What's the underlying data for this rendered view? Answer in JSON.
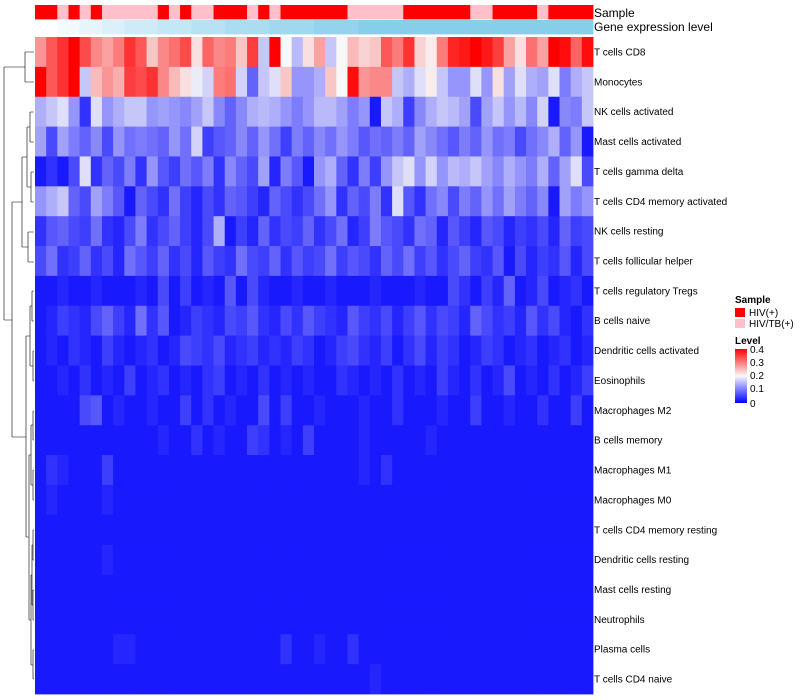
{
  "chart_data": {
    "type": "heatmap",
    "title": "",
    "annotation_tracks": [
      {
        "name": "Sample"
      },
      {
        "name": "Gene expression level"
      }
    ],
    "sample_groups": [
      "HIV(+)",
      "HIV(+)",
      "HIV/TB(+)",
      "HIV(+)",
      "HIV/TB(+)",
      "HIV(+)",
      "HIV/TB(+)",
      "HIV/TB(+)",
      "HIV/TB(+)",
      "HIV/TB(+)",
      "HIV/TB(+)",
      "HIV(+)",
      "HIV/TB(+)",
      "HIV(+)",
      "HIV/TB(+)",
      "HIV/TB(+)",
      "HIV(+)",
      "HIV(+)",
      "HIV(+)",
      "HIV/TB(+)",
      "HIV(+)",
      "HIV/TB(+)",
      "HIV(+)",
      "HIV(+)",
      "HIV(+)",
      "HIV(+)",
      "HIV(+)",
      "HIV(+)",
      "HIV/TB(+)",
      "HIV/TB(+)",
      "HIV/TB(+)",
      "HIV/TB(+)",
      "HIV/TB(+)",
      "HIV(+)",
      "HIV(+)",
      "HIV(+)",
      "HIV(+)",
      "HIV(+)",
      "HIV(+)",
      "HIV/TB(+)",
      "HIV/TB(+)",
      "HIV(+)",
      "HIV(+)",
      "HIV(+)",
      "HIV(+)",
      "HIV/TB(+)",
      "HIV(+)",
      "HIV(+)",
      "HIV(+)",
      "HIV(+)"
    ],
    "expression_level_cols": [
      0,
      0,
      0.1,
      0.1,
      0.2,
      0.2,
      0.3,
      0.3,
      0.4,
      0.4,
      0.4,
      0.5,
      0.5,
      0.5,
      0.6,
      0.6,
      0.6,
      0.7,
      0.7,
      0.7,
      0.7,
      0.8,
      0.8,
      0.8,
      0.8,
      0.9,
      0.9,
      0.9,
      0.9,
      1,
      1,
      1,
      1,
      1,
      1,
      1,
      1,
      1,
      1,
      1,
      1,
      1,
      1,
      1,
      1,
      1,
      1,
      1,
      1,
      1
    ],
    "rows": [
      "T cells CD8",
      "Monocytes",
      "NK cells activated",
      "Mast cells activated",
      "T cells gamma delta",
      "T cells CD4 memory activated",
      "NK cells resting",
      "T cells follicular helper",
      "T cells regulatory  Tregs",
      "B cells naive",
      "Dendritic cells activated",
      "Eosinophils",
      "Macrophages M2",
      "B cells memory",
      "Macrophages M1",
      "Macrophages M0",
      "T cells CD4 memory resting",
      "Dendritic cells resting",
      "Mast cells resting",
      "Neutrophils",
      "Plasma cells",
      "T cells CD4 naive"
    ],
    "values": [
      [
        0.28,
        0.33,
        0.36,
        0.4,
        0.34,
        0.29,
        0.27,
        0.3,
        0.36,
        0.33,
        0.24,
        0.29,
        0.31,
        0.34,
        0.22,
        0.32,
        0.29,
        0.3,
        0.24,
        0.35,
        0.16,
        0.4,
        0.2,
        0.15,
        0.22,
        0.27,
        0.16,
        0.2,
        0.25,
        0.23,
        0.24,
        0.33,
        0.3,
        0.36,
        0.23,
        0.21,
        0.3,
        0.37,
        0.38,
        0.4,
        0.38,
        0.35,
        0.27,
        0.22,
        0.31,
        0.27,
        0.4,
        0.39,
        0.32,
        0.39
      ],
      [
        0.4,
        0.33,
        0.36,
        0.4,
        0.16,
        0.25,
        0.28,
        0.26,
        0.35,
        0.34,
        0.36,
        0.29,
        0.25,
        0.22,
        0.19,
        0.17,
        0.3,
        0.31,
        0.17,
        0.08,
        0.16,
        0.18,
        0.24,
        0.12,
        0.12,
        0.14,
        0.24,
        0.2,
        0.39,
        0.28,
        0.29,
        0.29,
        0.16,
        0.14,
        0.18,
        0.21,
        0.16,
        0.12,
        0.12,
        0.18,
        0.12,
        0.22,
        0.13,
        0.18,
        0.14,
        0.13,
        0.18,
        0.1,
        0.14,
        0.16
      ],
      [
        0.14,
        0.16,
        0.18,
        0.12,
        0.04,
        0.18,
        0.12,
        0.14,
        0.16,
        0.16,
        0.12,
        0.13,
        0.12,
        0.11,
        0.13,
        0.16,
        0.11,
        0.08,
        0.11,
        0.14,
        0.15,
        0.14,
        0.12,
        0.1,
        0.12,
        0.15,
        0.15,
        0.13,
        0.1,
        0.12,
        0.02,
        0.16,
        0.14,
        0.05,
        0.11,
        0.14,
        0.16,
        0.15,
        0.13,
        0.06,
        0.13,
        0.16,
        0.12,
        0.15,
        0.11,
        0.17,
        0.02,
        0.11,
        0.1,
        0.16
      ],
      [
        0.13,
        0.06,
        0.13,
        0.1,
        0.08,
        0.11,
        0.06,
        0.12,
        0.09,
        0.1,
        0.09,
        0.08,
        0.12,
        0.09,
        0.17,
        0.05,
        0.07,
        0.08,
        0.11,
        0.08,
        0.12,
        0.09,
        0.05,
        0.1,
        0.08,
        0.11,
        0.09,
        0.12,
        0.1,
        0.07,
        0.09,
        0.08,
        0.1,
        0.08,
        0.13,
        0.11,
        0.09,
        0.07,
        0.1,
        0.08,
        0.12,
        0.09,
        0.1,
        0.06,
        0.09,
        0.11,
        0.14,
        0.08,
        0.12,
        0.02
      ],
      [
        0.02,
        0.04,
        0.02,
        0.06,
        0.18,
        0.04,
        0.08,
        0.06,
        0.1,
        0.04,
        0.12,
        0.07,
        0.05,
        0.09,
        0.07,
        0.1,
        0.04,
        0.11,
        0.08,
        0.06,
        0.13,
        0.03,
        0.1,
        0.07,
        0.02,
        0.12,
        0.14,
        0.08,
        0.04,
        0.1,
        0.05,
        0.12,
        0.16,
        0.18,
        0.12,
        0.17,
        0.12,
        0.15,
        0.14,
        0.16,
        0.13,
        0.11,
        0.14,
        0.12,
        0.1,
        0.14,
        0.08,
        0.13,
        0.18,
        0.06
      ],
      [
        0.12,
        0.14,
        0.16,
        0.08,
        0.06,
        0.13,
        0.1,
        0.07,
        0.02,
        0.08,
        0.06,
        0.04,
        0.09,
        0.05,
        0.03,
        0.06,
        0.04,
        0.08,
        0.07,
        0.05,
        0.03,
        0.08,
        0.06,
        0.04,
        0.06,
        0.09,
        0.12,
        0.04,
        0.08,
        0.06,
        0.1,
        0.04,
        0.18,
        0.07,
        0.04,
        0.09,
        0.11,
        0.06,
        0.1,
        0.08,
        0.12,
        0.09,
        0.13,
        0.1,
        0.08,
        0.11,
        0.02,
        0.13,
        0.1,
        0.12
      ],
      [
        0.04,
        0.07,
        0.08,
        0.06,
        0.05,
        0.09,
        0.04,
        0.03,
        0.06,
        0.1,
        0.04,
        0.06,
        0.08,
        0.05,
        0.03,
        0.06,
        0.14,
        0.02,
        0.05,
        0.03,
        0.08,
        0.04,
        0.06,
        0.05,
        0.08,
        0.04,
        0.06,
        0.09,
        0.03,
        0.05,
        0.1,
        0.07,
        0.06,
        0.04,
        0.09,
        0.08,
        0.03,
        0.07,
        0.05,
        0.03,
        0.07,
        0.06,
        0.03,
        0.05,
        0.04,
        0.06,
        0.03,
        0.08,
        0.05,
        0.06
      ],
      [
        0.06,
        0.09,
        0.04,
        0.05,
        0.08,
        0.04,
        0.06,
        0.03,
        0.09,
        0.07,
        0.05,
        0.08,
        0.04,
        0.06,
        0.03,
        0.07,
        0.05,
        0.04,
        0.09,
        0.06,
        0.05,
        0.08,
        0.04,
        0.07,
        0.05,
        0.06,
        0.09,
        0.05,
        0.07,
        0.06,
        0.04,
        0.08,
        0.06,
        0.09,
        0.05,
        0.07,
        0.04,
        0.06,
        0.08,
        0.05,
        0.04,
        0.07,
        0.02,
        0.06,
        0.03,
        0.05,
        0.04,
        0.07,
        0.03,
        0.06
      ],
      [
        0.02,
        0.02,
        0.03,
        0.02,
        0.02,
        0.03,
        0.02,
        0.02,
        0.02,
        0.03,
        0.02,
        0.06,
        0.02,
        0.05,
        0.02,
        0.03,
        0.02,
        0.07,
        0.02,
        0.06,
        0.03,
        0.02,
        0.02,
        0.03,
        0.02,
        0.02,
        0.03,
        0.02,
        0.02,
        0.02,
        0.03,
        0.02,
        0.02,
        0.02,
        0.03,
        0.02,
        0.02,
        0.06,
        0.04,
        0.02,
        0.05,
        0.03,
        0.08,
        0.02,
        0.03,
        0.06,
        0.02,
        0.03,
        0.04,
        0.02
      ],
      [
        0.02,
        0.03,
        0.05,
        0.04,
        0.03,
        0.06,
        0.08,
        0.05,
        0.03,
        0.09,
        0.04,
        0.07,
        0.02,
        0.03,
        0.05,
        0.04,
        0.03,
        0.06,
        0.05,
        0.07,
        0.04,
        0.03,
        0.06,
        0.04,
        0.07,
        0.05,
        0.04,
        0.03,
        0.07,
        0.05,
        0.04,
        0.06,
        0.03,
        0.05,
        0.07,
        0.04,
        0.06,
        0.05,
        0.03,
        0.08,
        0.06,
        0.04,
        0.05,
        0.03,
        0.07,
        0.04,
        0.06,
        0.03,
        0.02,
        0.04
      ],
      [
        0.02,
        0.03,
        0.02,
        0.04,
        0.03,
        0.02,
        0.05,
        0.03,
        0.02,
        0.03,
        0.04,
        0.02,
        0.03,
        0.06,
        0.05,
        0.04,
        0.06,
        0.03,
        0.04,
        0.05,
        0.03,
        0.04,
        0.03,
        0.05,
        0.04,
        0.02,
        0.03,
        0.05,
        0.06,
        0.04,
        0.03,
        0.05,
        0.02,
        0.04,
        0.06,
        0.03,
        0.05,
        0.04,
        0.02,
        0.03,
        0.05,
        0.04,
        0.02,
        0.03,
        0.04,
        0.02,
        0.03,
        0.04,
        0.02,
        0.03
      ],
      [
        0.02,
        0.02,
        0.03,
        0.02,
        0.04,
        0.02,
        0.03,
        0.02,
        0.05,
        0.02,
        0.03,
        0.04,
        0.02,
        0.03,
        0.02,
        0.04,
        0.05,
        0.02,
        0.03,
        0.02,
        0.04,
        0.02,
        0.03,
        0.02,
        0.03,
        0.02,
        0.02,
        0.04,
        0.03,
        0.02,
        0.03,
        0.02,
        0.04,
        0.02,
        0.03,
        0.02,
        0.05,
        0.03,
        0.02,
        0.04,
        0.02,
        0.03,
        0.06,
        0.02,
        0.03,
        0.02,
        0.04,
        0.02,
        0.03,
        0.05
      ],
      [
        0.02,
        0.02,
        0.02,
        0.02,
        0.06,
        0.07,
        0.02,
        0.03,
        0.02,
        0.02,
        0.03,
        0.02,
        0.02,
        0.05,
        0.02,
        0.04,
        0.02,
        0.03,
        0.02,
        0.02,
        0.06,
        0.02,
        0.05,
        0.02,
        0.02,
        0.03,
        0.02,
        0.02,
        0.02,
        0.03,
        0.02,
        0.02,
        0.04,
        0.02,
        0.02,
        0.02,
        0.03,
        0.02,
        0.02,
        0.05,
        0.02,
        0.02,
        0.03,
        0.02,
        0.02,
        0.04,
        0.02,
        0.02,
        0.05,
        0.02
      ],
      [
        0.02,
        0.02,
        0.02,
        0.02,
        0.02,
        0.02,
        0.02,
        0.02,
        0.02,
        0.02,
        0.02,
        0.03,
        0.02,
        0.02,
        0.04,
        0.02,
        0.03,
        0.02,
        0.02,
        0.05,
        0.04,
        0.02,
        0.03,
        0.02,
        0.05,
        0.02,
        0.02,
        0.02,
        0.02,
        0.03,
        0.02,
        0.02,
        0.02,
        0.02,
        0.02,
        0.03,
        0.02,
        0.02,
        0.02,
        0.02,
        0.02,
        0.02,
        0.02,
        0.02,
        0.02,
        0.02,
        0.02,
        0.02,
        0.02,
        0.02
      ],
      [
        0.02,
        0.04,
        0.03,
        0.02,
        0.02,
        0.02,
        0.05,
        0.02,
        0.02,
        0.02,
        0.02,
        0.02,
        0.02,
        0.02,
        0.02,
        0.02,
        0.02,
        0.02,
        0.02,
        0.02,
        0.02,
        0.02,
        0.02,
        0.02,
        0.02,
        0.02,
        0.02,
        0.02,
        0.02,
        0.03,
        0.02,
        0.04,
        0.02,
        0.02,
        0.02,
        0.02,
        0.02,
        0.02,
        0.02,
        0.02,
        0.02,
        0.02,
        0.02,
        0.02,
        0.02,
        0.02,
        0.02,
        0.02,
        0.02,
        0.02
      ],
      [
        0.02,
        0.03,
        0.02,
        0.02,
        0.02,
        0.02,
        0.03,
        0.02,
        0.02,
        0.02,
        0.02,
        0.02,
        0.02,
        0.02,
        0.02,
        0.02,
        0.02,
        0.02,
        0.02,
        0.02,
        0.02,
        0.02,
        0.02,
        0.02,
        0.02,
        0.02,
        0.02,
        0.02,
        0.02,
        0.02,
        0.02,
        0.02,
        0.02,
        0.02,
        0.02,
        0.02,
        0.02,
        0.02,
        0.02,
        0.02,
        0.02,
        0.02,
        0.02,
        0.02,
        0.02,
        0.02,
        0.02,
        0.02,
        0.02,
        0.02
      ],
      [
        0.02,
        0.02,
        0.02,
        0.02,
        0.02,
        0.02,
        0.02,
        0.02,
        0.02,
        0.02,
        0.02,
        0.02,
        0.02,
        0.02,
        0.02,
        0.02,
        0.02,
        0.02,
        0.02,
        0.02,
        0.02,
        0.02,
        0.02,
        0.02,
        0.02,
        0.02,
        0.02,
        0.02,
        0.02,
        0.02,
        0.02,
        0.02,
        0.02,
        0.02,
        0.02,
        0.02,
        0.02,
        0.02,
        0.02,
        0.02,
        0.02,
        0.02,
        0.02,
        0.02,
        0.02,
        0.02,
        0.02,
        0.02,
        0.02,
        0.02
      ],
      [
        0.02,
        0.02,
        0.02,
        0.02,
        0.02,
        0.02,
        0.03,
        0.02,
        0.02,
        0.02,
        0.02,
        0.02,
        0.02,
        0.02,
        0.02,
        0.02,
        0.02,
        0.02,
        0.02,
        0.02,
        0.02,
        0.02,
        0.02,
        0.02,
        0.02,
        0.02,
        0.02,
        0.02,
        0.02,
        0.02,
        0.02,
        0.02,
        0.02,
        0.02,
        0.02,
        0.02,
        0.02,
        0.02,
        0.02,
        0.02,
        0.02,
        0.02,
        0.02,
        0.02,
        0.02,
        0.02,
        0.02,
        0.02,
        0.02,
        0.02
      ],
      [
        0.02,
        0.02,
        0.02,
        0.02,
        0.02,
        0.02,
        0.02,
        0.02,
        0.02,
        0.02,
        0.02,
        0.02,
        0.02,
        0.02,
        0.02,
        0.02,
        0.02,
        0.02,
        0.02,
        0.02,
        0.02,
        0.02,
        0.02,
        0.02,
        0.02,
        0.02,
        0.02,
        0.02,
        0.02,
        0.02,
        0.02,
        0.02,
        0.02,
        0.02,
        0.02,
        0.02,
        0.02,
        0.02,
        0.02,
        0.02,
        0.02,
        0.02,
        0.02,
        0.02,
        0.02,
        0.02,
        0.02,
        0.02,
        0.02,
        0.02
      ],
      [
        0.02,
        0.02,
        0.02,
        0.02,
        0.02,
        0.02,
        0.02,
        0.02,
        0.02,
        0.02,
        0.02,
        0.02,
        0.02,
        0.02,
        0.02,
        0.02,
        0.02,
        0.02,
        0.02,
        0.02,
        0.02,
        0.02,
        0.02,
        0.02,
        0.02,
        0.02,
        0.02,
        0.02,
        0.02,
        0.02,
        0.02,
        0.02,
        0.02,
        0.02,
        0.02,
        0.02,
        0.02,
        0.02,
        0.02,
        0.02,
        0.02,
        0.02,
        0.02,
        0.02,
        0.02,
        0.02,
        0.02,
        0.02,
        0.02,
        0.02
      ],
      [
        0.02,
        0.02,
        0.02,
        0.02,
        0.02,
        0.02,
        0.02,
        0.03,
        0.03,
        0.02,
        0.02,
        0.02,
        0.02,
        0.02,
        0.02,
        0.02,
        0.02,
        0.02,
        0.02,
        0.02,
        0.02,
        0.02,
        0.04,
        0.02,
        0.02,
        0.03,
        0.02,
        0.02,
        0.04,
        0.02,
        0.02,
        0.02,
        0.02,
        0.02,
        0.02,
        0.02,
        0.02,
        0.02,
        0.02,
        0.02,
        0.02,
        0.02,
        0.02,
        0.02,
        0.02,
        0.02,
        0.02,
        0.02,
        0.02,
        0.02
      ],
      [
        0.02,
        0.02,
        0.02,
        0.02,
        0.02,
        0.02,
        0.02,
        0.02,
        0.02,
        0.02,
        0.02,
        0.02,
        0.02,
        0.02,
        0.02,
        0.02,
        0.02,
        0.02,
        0.02,
        0.02,
        0.02,
        0.02,
        0.02,
        0.02,
        0.02,
        0.02,
        0.02,
        0.02,
        0.02,
        0.02,
        0.03,
        0.02,
        0.02,
        0.02,
        0.02,
        0.02,
        0.02,
        0.02,
        0.02,
        0.02,
        0.02,
        0.02,
        0.02,
        0.02,
        0.02,
        0.02,
        0.02,
        0.02,
        0.02,
        0.02
      ]
    ],
    "color_scale": {
      "low": "#0000ff",
      "mid": "#f8f8f8",
      "high": "#ff0000",
      "domain": [
        0,
        0.2,
        0.4
      ]
    },
    "legend": {
      "sample": {
        "title": "Sample",
        "entries": [
          {
            "label": "HIV(+)",
            "color": "#ff0000"
          },
          {
            "label": "HIV/TB(+)",
            "color": "#ffc0cb"
          }
        ]
      },
      "level": {
        "title": "Level",
        "ticks": [
          0.4,
          0.3,
          0.2,
          0.1,
          0
        ]
      }
    },
    "expression_colors": {
      "low": "#ffffff",
      "high": "#87ceeb"
    }
  }
}
